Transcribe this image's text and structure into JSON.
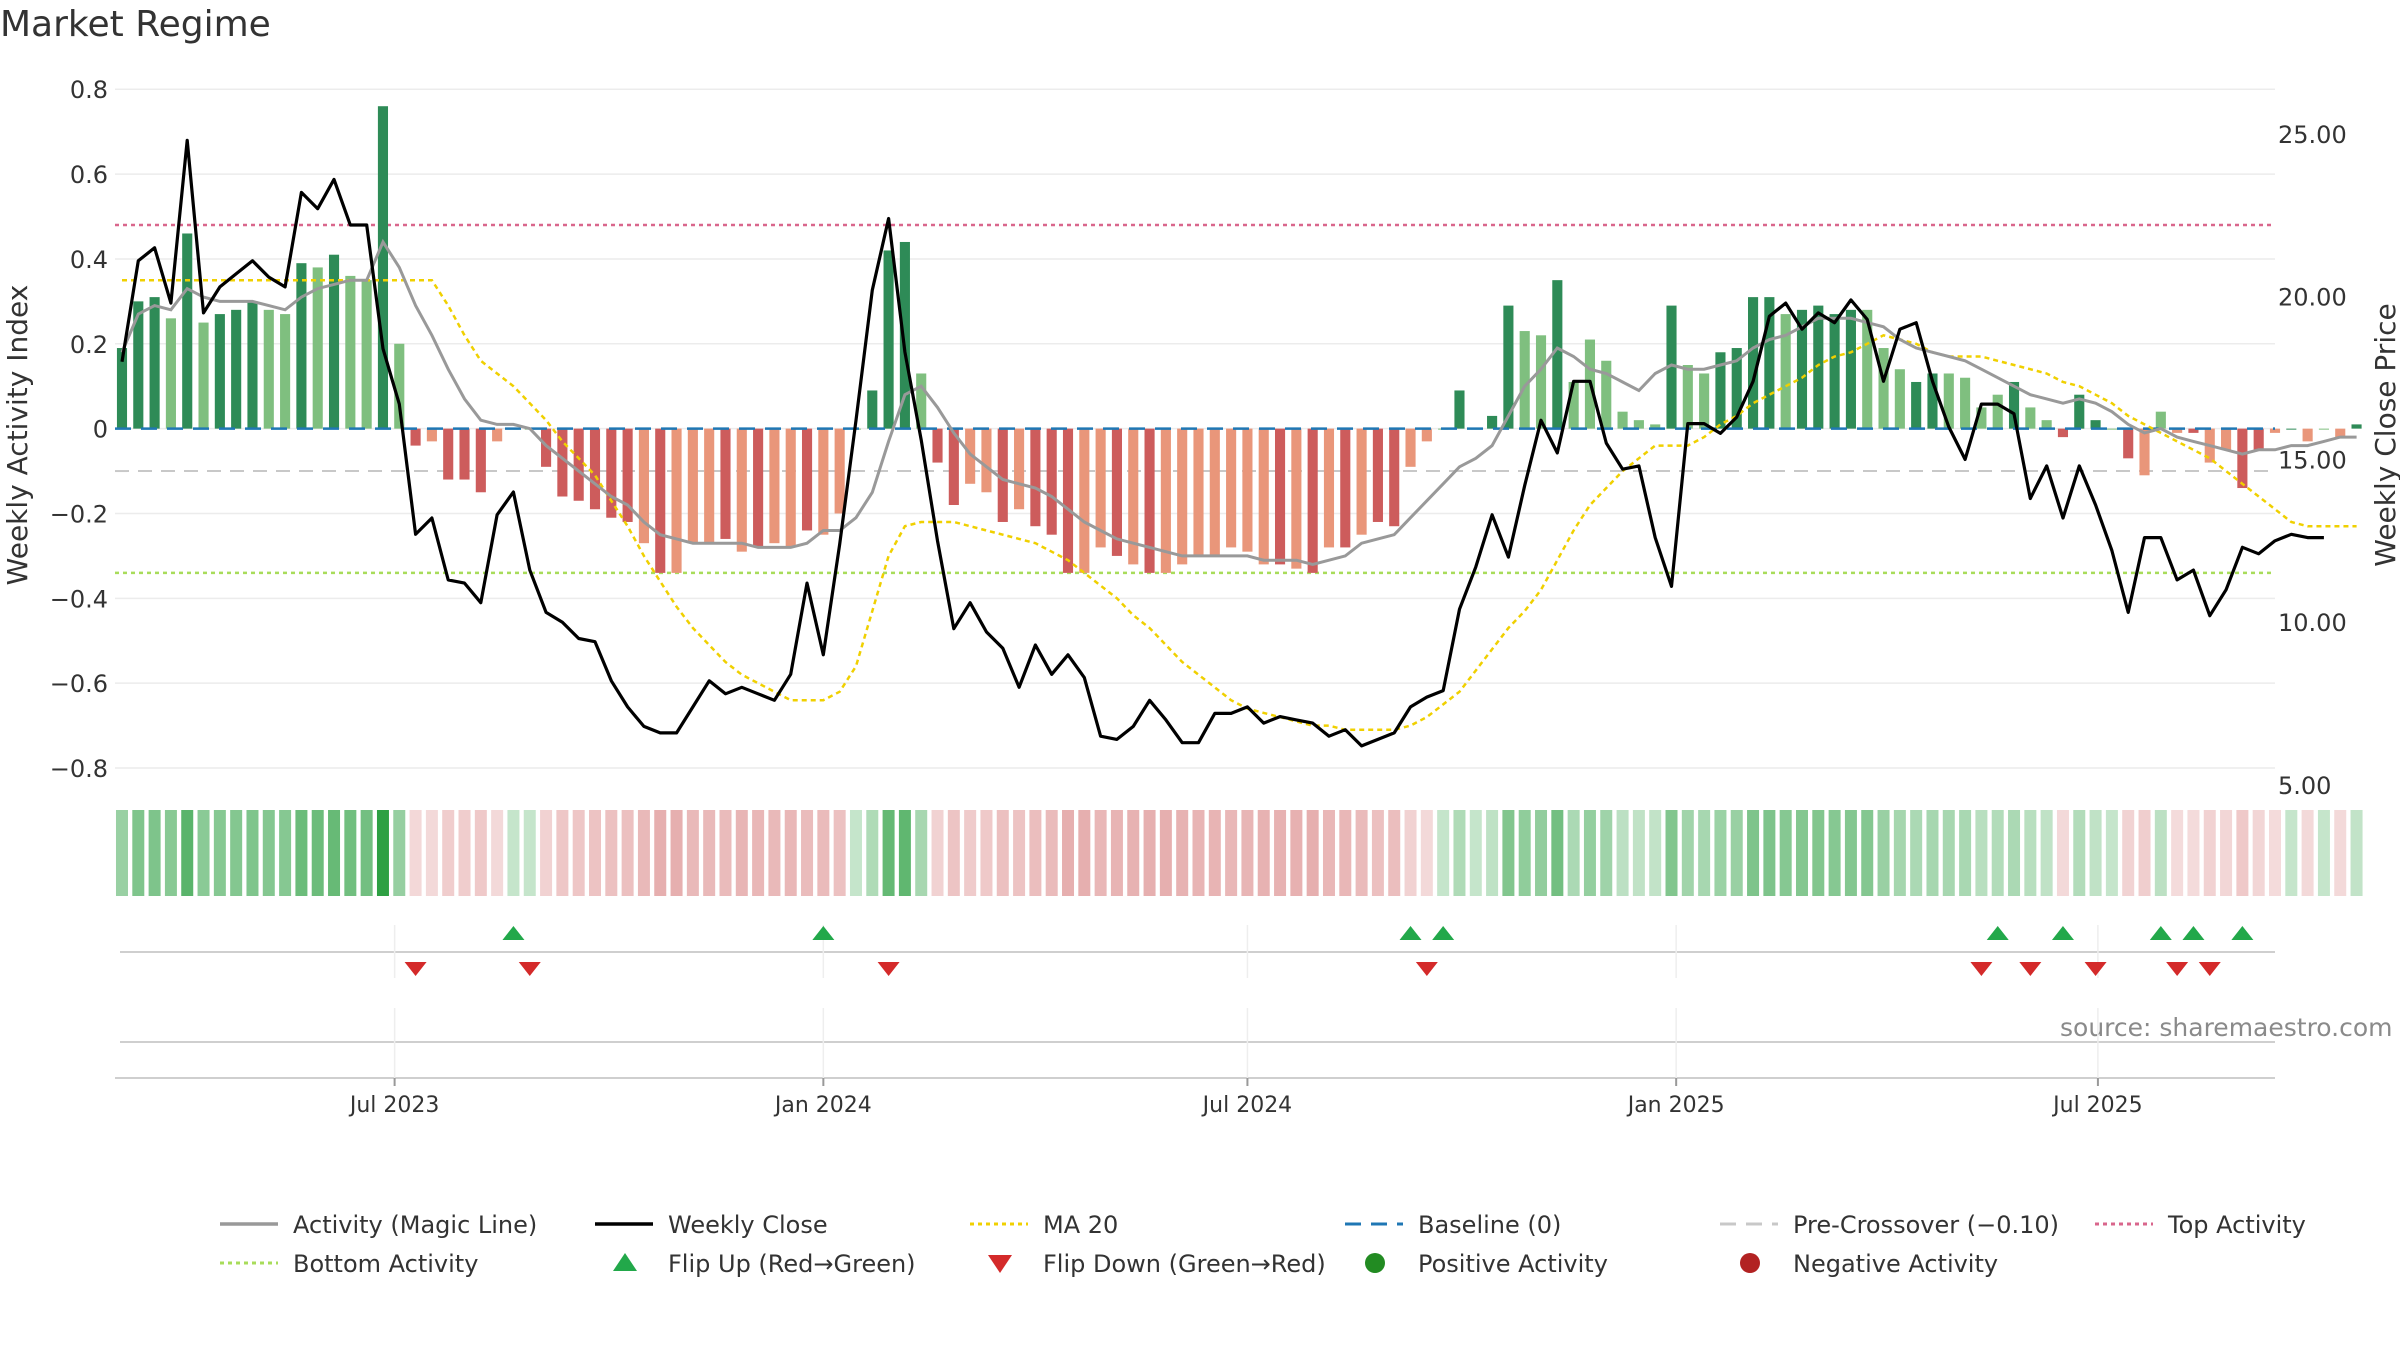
{
  "title": "Market Regime",
  "source": "source: sharemaestro.com",
  "colors": {
    "bar_green_dark": "#2e8b57",
    "bar_green_light": "#7fbf7f",
    "bar_red_dark": "#cd5c5c",
    "bar_red_light": "#e9967a",
    "close_line": "#000000",
    "magic_line": "#999999",
    "ma20": "#f0d000",
    "baseline": "#1f77b4",
    "pre_crossover": "#c8c8c8",
    "top_activity": "#d9668c",
    "bottom_activity": "#a8dc5a",
    "flip_up": "#22a84a",
    "flip_down": "#d42a2a",
    "positive": "#228b22",
    "negative": "#b22222"
  },
  "chart_data": {
    "type": "bar",
    "x_start": "2023-03-06",
    "x_step_days": 7,
    "x_axis": {
      "min": "2023-03-03",
      "max": "2025-09-15",
      "ticks": [
        "Jul 2023",
        "Jan 2024",
        "Jul 2024",
        "Jan 2025",
        "Jul 2025"
      ]
    },
    "ylabel": "Weekly Activity Index",
    "ylabel_right": "Weekly Close Price",
    "ylim": [
      -0.84,
      0.81
    ],
    "ylim_right": [
      5.0,
      26.5
    ],
    "yticks": [
      "0.8",
      "0.6",
      "0.4",
      "0.2",
      "0",
      "−0.2",
      "−0.4",
      "−0.6",
      "−0.8"
    ],
    "yticks_right": [
      "25.00",
      "20.00",
      "15.00",
      "10.00",
      "5.00"
    ],
    "reference_lines": {
      "top_activity": 0.48,
      "bottom_activity": -0.34,
      "pre_crossover": -0.1,
      "baseline": 0
    },
    "activity": [
      0.19,
      0.3,
      0.31,
      0.26,
      0.46,
      0.25,
      0.27,
      0.28,
      0.3,
      0.28,
      0.27,
      0.39,
      0.38,
      0.41,
      0.36,
      0.35,
      0.76,
      0.2,
      -0.04,
      -0.03,
      -0.12,
      -0.12,
      -0.15,
      -0.03,
      0,
      0,
      -0.09,
      -0.16,
      -0.17,
      -0.19,
      -0.21,
      -0.22,
      -0.27,
      -0.34,
      -0.34,
      -0.27,
      -0.27,
      -0.26,
      -0.29,
      -0.28,
      -0.27,
      -0.28,
      -0.24,
      -0.25,
      -0.2,
      0,
      0.09,
      0.42,
      0.44,
      0.13,
      -0.08,
      -0.18,
      -0.13,
      -0.15,
      -0.22,
      -0.19,
      -0.23,
      -0.25,
      -0.34,
      -0.34,
      -0.28,
      -0.3,
      -0.32,
      -0.34,
      -0.34,
      -0.32,
      -0.3,
      -0.3,
      -0.28,
      -0.29,
      -0.32,
      -0.32,
      -0.33,
      -0.34,
      -0.28,
      -0.28,
      -0.25,
      -0.22,
      -0.23,
      -0.09,
      -0.03,
      0,
      0.09,
      0.0,
      0.03,
      0.29,
      0.23,
      0.22,
      0.35,
      0.11,
      0.21,
      0.16,
      0.04,
      0.02,
      0.01,
      0.29,
      0.15,
      0.13,
      0.18,
      0.19,
      0.31,
      0.31,
      0.27,
      0.28,
      0.29,
      0.27,
      0.28,
      0.28,
      0.19,
      0.14,
      0.11,
      0.13,
      0.13,
      0.12,
      0.05,
      0.08,
      0.11,
      0.05,
      0.02,
      -0.02,
      0.08,
      0.02,
      0.0,
      -0.07,
      -0.11,
      0.04,
      -0.01,
      -0.01,
      -0.08,
      -0.05,
      -0.14,
      -0.05,
      -0.01,
      0.0,
      -0.03,
      0.0,
      -0.02,
      0.01
    ],
    "activity_shade": [
      "dark",
      "dark",
      "dark",
      "light",
      "dark",
      "light",
      "dark",
      "dark",
      "dark",
      "light",
      "light",
      "dark",
      "light",
      "dark",
      "light",
      "light",
      "dark",
      "light",
      "dark",
      "light",
      "dark",
      "dark",
      "dark",
      "light",
      "light",
      "light",
      "dark",
      "dark",
      "dark",
      "dark",
      "dark",
      "dark",
      "light",
      "dark",
      "light",
      "light",
      "light",
      "dark",
      "light",
      "dark",
      "light",
      "light",
      "dark",
      "light",
      "light",
      "light",
      "dark",
      "dark",
      "dark",
      "light",
      "dark",
      "dark",
      "light",
      "light",
      "dark",
      "light",
      "dark",
      "dark",
      "dark",
      "light",
      "light",
      "dark",
      "light",
      "dark",
      "light",
      "light",
      "light",
      "light",
      "light",
      "light",
      "light",
      "dark",
      "light",
      "dark",
      "light",
      "dark",
      "light",
      "dark",
      "dark",
      "light",
      "light",
      "light",
      "dark",
      "light",
      "dark",
      "dark",
      "light",
      "light",
      "dark",
      "light",
      "light",
      "light",
      "light",
      "light",
      "light",
      "dark",
      "light",
      "light",
      "dark",
      "dark",
      "dark",
      "dark",
      "light",
      "dark",
      "dark",
      "dark",
      "dark",
      "light",
      "light",
      "light",
      "dark",
      "dark",
      "light",
      "light",
      "light",
      "light",
      "dark",
      "light",
      "light",
      "dark",
      "dark",
      "dark",
      "light",
      "dark",
      "light",
      "light",
      "light",
      "dark",
      "light",
      "light",
      "dark",
      "dark",
      "light",
      "dark",
      "light",
      "light",
      "light",
      "dark"
    ],
    "magic_line": [
      0.18,
      0.27,
      0.29,
      0.28,
      0.33,
      0.31,
      0.3,
      0.3,
      0.3,
      0.29,
      0.28,
      0.31,
      0.33,
      0.34,
      0.35,
      0.35,
      0.44,
      0.38,
      0.29,
      0.22,
      0.14,
      0.07,
      0.02,
      0.01,
      0.01,
      0.0,
      -0.04,
      -0.07,
      -0.1,
      -0.13,
      -0.16,
      -0.18,
      -0.22,
      -0.25,
      -0.26,
      -0.27,
      -0.27,
      -0.27,
      -0.27,
      -0.28,
      -0.28,
      -0.28,
      -0.27,
      -0.24,
      -0.24,
      -0.21,
      -0.15,
      -0.03,
      0.08,
      0.1,
      0.05,
      -0.01,
      -0.06,
      -0.09,
      -0.12,
      -0.13,
      -0.14,
      -0.16,
      -0.19,
      -0.22,
      -0.24,
      -0.26,
      -0.27,
      -0.28,
      -0.29,
      -0.3,
      -0.3,
      -0.3,
      -0.3,
      -0.3,
      -0.31,
      -0.31,
      -0.31,
      -0.32,
      -0.31,
      -0.3,
      -0.27,
      -0.26,
      -0.25,
      -0.21,
      -0.17,
      -0.13,
      -0.09,
      -0.07,
      -0.04,
      0.03,
      0.1,
      0.14,
      0.19,
      0.17,
      0.14,
      0.13,
      0.11,
      0.09,
      0.13,
      0.15,
      0.14,
      0.14,
      0.15,
      0.16,
      0.19,
      0.21,
      0.22,
      0.24,
      0.26,
      0.26,
      0.26,
      0.25,
      0.24,
      0.21,
      0.19,
      0.18,
      0.17,
      0.16,
      0.14,
      0.12,
      0.1,
      0.08,
      0.07,
      0.06,
      0.07,
      0.06,
      0.04,
      0.01,
      -0.01,
      0.0,
      -0.02,
      -0.03,
      -0.04,
      -0.05,
      -0.06,
      -0.05,
      -0.05,
      -0.04,
      -0.04,
      -0.03,
      -0.02,
      -0.02
    ],
    "weekly_close": [
      18.0,
      21.1,
      21.5,
      19.8,
      24.8,
      19.5,
      20.3,
      20.7,
      21.1,
      20.6,
      20.3,
      23.2,
      22.7,
      23.6,
      22.2,
      22.2,
      18.4,
      16.7,
      12.7,
      13.2,
      11.3,
      11.2,
      10.6,
      13.3,
      14.0,
      11.6,
      10.3,
      10.0,
      9.5,
      9.4,
      8.2,
      7.4,
      6.8,
      6.6,
      6.6,
      7.4,
      8.2,
      7.8,
      8.0,
      7.8,
      7.6,
      8.4,
      11.2,
      9.0,
      12.4,
      16.2,
      20.2,
      22.4,
      18.3,
      15.6,
      12.5,
      9.8,
      10.6,
      9.7,
      9.2,
      8.0,
      9.3,
      8.4,
      9.0,
      8.3,
      6.5,
      6.4,
      6.8,
      7.6,
      7.0,
      6.3,
      6.3,
      7.2,
      7.2,
      7.4,
      6.9,
      7.1,
      7.0,
      6.9,
      6.5,
      6.7,
      6.2,
      6.4,
      6.6,
      7.4,
      7.7,
      7.9,
      10.4,
      11.7,
      13.3,
      12.0,
      14.2,
      16.2,
      15.2,
      17.4,
      17.4,
      15.5,
      14.7,
      14.8,
      12.6,
      11.1,
      16.1,
      16.1,
      15.8,
      16.3,
      17.4,
      19.4,
      19.8,
      19.0,
      19.5,
      19.2,
      19.9,
      19.3,
      17.4,
      19.0,
      19.2,
      17.4,
      16.0,
      15.0,
      16.7,
      16.7,
      16.4,
      13.8,
      14.8,
      13.2,
      14.8,
      13.6,
      12.2,
      10.3,
      12.6,
      12.6,
      11.3,
      11.6,
      10.2,
      11.0,
      12.3,
      12.1,
      12.5,
      12.7,
      12.6,
      12.6
    ],
    "ma20": [
      0.35,
      0.35,
      0.35,
      0.35,
      0.35,
      0.35,
      0.35,
      0.35,
      0.35,
      0.35,
      0.35,
      0.35,
      0.35,
      0.35,
      0.35,
      0.35,
      0.35,
      0.35,
      0.35,
      0.35,
      0.29,
      0.22,
      0.16,
      0.13,
      0.1,
      0.06,
      0.02,
      -0.03,
      -0.07,
      -0.11,
      -0.17,
      -0.23,
      -0.3,
      -0.36,
      -0.42,
      -0.47,
      -0.51,
      -0.55,
      -0.58,
      -0.6,
      -0.62,
      -0.64,
      -0.64,
      -0.64,
      -0.62,
      -0.56,
      -0.43,
      -0.3,
      -0.23,
      -0.22,
      -0.22,
      -0.22,
      -0.23,
      -0.24,
      -0.25,
      -0.26,
      -0.27,
      -0.29,
      -0.31,
      -0.34,
      -0.37,
      -0.4,
      -0.44,
      -0.47,
      -0.51,
      -0.55,
      -0.58,
      -0.61,
      -0.64,
      -0.66,
      -0.67,
      -0.68,
      -0.69,
      -0.7,
      -0.7,
      -0.71,
      -0.71,
      -0.71,
      -0.71,
      -0.7,
      -0.68,
      -0.65,
      -0.62,
      -0.57,
      -0.52,
      -0.47,
      -0.43,
      -0.38,
      -0.31,
      -0.24,
      -0.18,
      -0.14,
      -0.1,
      -0.07,
      -0.04,
      -0.04,
      -0.04,
      -0.02,
      0.01,
      0.03,
      0.06,
      0.08,
      0.1,
      0.12,
      0.15,
      0.17,
      0.18,
      0.2,
      0.22,
      0.21,
      0.2,
      0.18,
      0.17,
      0.17,
      0.17,
      0.16,
      0.15,
      0.14,
      0.13,
      0.11,
      0.1,
      0.08,
      0.06,
      0.03,
      0.01,
      -0.01,
      -0.03,
      -0.05,
      -0.07,
      -0.1,
      -0.13,
      -0.16,
      -0.19,
      -0.22,
      -0.23,
      -0.23,
      -0.23,
      -0.23
    ],
    "flip_up_weeks": [
      24,
      43,
      79,
      81,
      115,
      119,
      125,
      127,
      130
    ],
    "flip_down_weeks": [
      18,
      25,
      47,
      80,
      114,
      117,
      121,
      126,
      128
    ],
    "legend": [
      {
        "label": "Activity (Magic Line)",
        "kind": "line",
        "color": "#999999"
      },
      {
        "label": "Weekly Close",
        "kind": "line",
        "color": "#000000"
      },
      {
        "label": "MA 20",
        "kind": "dotted",
        "color": "#f0d000"
      },
      {
        "label": "Baseline (0)",
        "kind": "dashed",
        "color": "#1f77b4"
      },
      {
        "label": "Pre-Crossover (−0.10)",
        "kind": "dashed",
        "color": "#c8c8c8"
      },
      {
        "label": "Top Activity",
        "kind": "dotted",
        "color": "#d9668c"
      },
      {
        "label": "Bottom Activity",
        "kind": "dotted",
        "color": "#a8dc5a"
      },
      {
        "label": "Flip Up (Red→Green)",
        "kind": "tri-up",
        "color": "#22a84a"
      },
      {
        "label": "Flip Down (Green→Red)",
        "kind": "tri-down",
        "color": "#d42a2a"
      },
      {
        "label": "Positive Activity",
        "kind": "dot",
        "color": "#228b22"
      },
      {
        "label": "Negative Activity",
        "kind": "dot",
        "color": "#b22222"
      }
    ],
    "legend_position": "bottom"
  }
}
